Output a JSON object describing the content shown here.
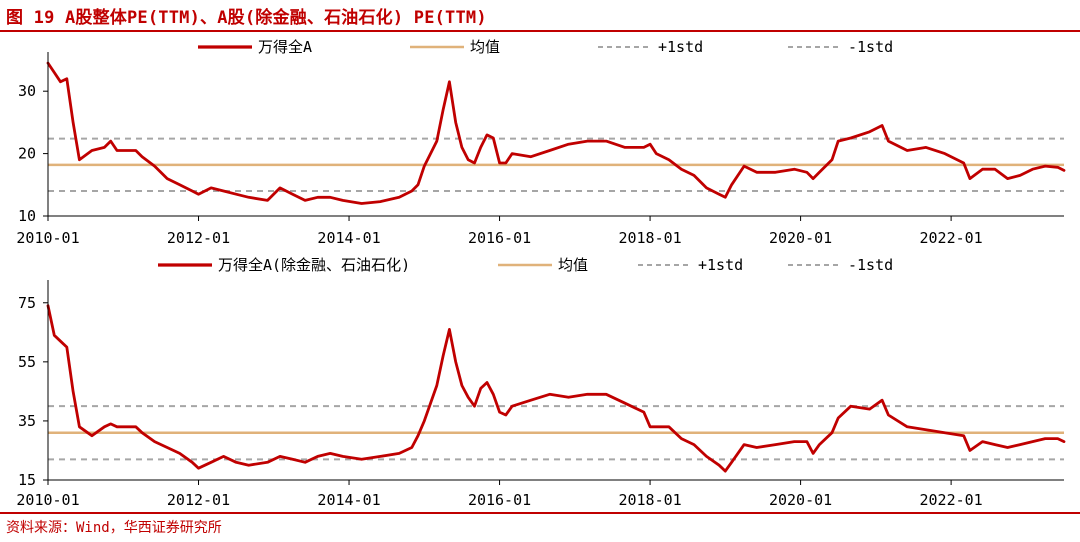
{
  "figure_title": "图 19 A股整体PE(TTM)、A股(除金融、石油石化) PE(TTM)",
  "source": "资料来源：Wind，华西证券研究所",
  "colors": {
    "accent": "#c00000",
    "series": "#c00000",
    "mean": "#e0b27a",
    "std": "#a6a6a6"
  },
  "chart_data": [
    {
      "type": "line",
      "title": "",
      "xlabel": "",
      "ylabel": "",
      "xlim": [
        "2010-01",
        "2023-07"
      ],
      "ylim": [
        10,
        35
      ],
      "yticks": [
        10,
        20,
        30
      ],
      "xticks": [
        "2010-01",
        "2012-01",
        "2014-01",
        "2016-01",
        "2018-01",
        "2020-01",
        "2022-01"
      ],
      "legend": [
        "万得全A",
        "均值",
        "+1std",
        "-1std"
      ],
      "mean": 18.2,
      "plus_1std": 22.4,
      "minus_1std": 14.0,
      "series": [
        {
          "name": "万得全A",
          "x": [
            "2010-01",
            "2010-02",
            "2010-03",
            "2010-04",
            "2010-05",
            "2010-06",
            "2010-08",
            "2010-10",
            "2010-11",
            "2010-12",
            "2011-03",
            "2011-04",
            "2011-06",
            "2011-08",
            "2011-10",
            "2011-12",
            "2012-01",
            "2012-03",
            "2012-05",
            "2012-07",
            "2012-09",
            "2012-12",
            "2013-02",
            "2013-04",
            "2013-06",
            "2013-08",
            "2013-10",
            "2013-12",
            "2014-03",
            "2014-06",
            "2014-09",
            "2014-11",
            "2014-12",
            "2015-01",
            "2015-03",
            "2015-04",
            "2015-05",
            "2015-06",
            "2015-07",
            "2015-08",
            "2015-09",
            "2015-10",
            "2015-11",
            "2015-12",
            "2016-01",
            "2016-02",
            "2016-03",
            "2016-06",
            "2016-09",
            "2016-12",
            "2017-03",
            "2017-06",
            "2017-09",
            "2017-12",
            "2018-01",
            "2018-02",
            "2018-04",
            "2018-06",
            "2018-08",
            "2018-10",
            "2018-12",
            "2019-01",
            "2019-02",
            "2019-04",
            "2019-06",
            "2019-09",
            "2019-12",
            "2020-02",
            "2020-03",
            "2020-04",
            "2020-06",
            "2020-07",
            "2020-09",
            "2020-12",
            "2021-02",
            "2021-03",
            "2021-06",
            "2021-09",
            "2021-12",
            "2022-03",
            "2022-04",
            "2022-06",
            "2022-08",
            "2022-10",
            "2022-12",
            "2023-02",
            "2023-04",
            "2023-06",
            "2023-07"
          ],
          "values": [
            34.5,
            33.0,
            31.5,
            32.0,
            25.0,
            19.0,
            20.5,
            21.0,
            22.0,
            20.5,
            20.5,
            19.5,
            18.0,
            16.0,
            15.0,
            14.0,
            13.5,
            14.5,
            14.0,
            13.5,
            13.0,
            12.5,
            14.5,
            13.5,
            12.5,
            13.0,
            13.0,
            12.5,
            12.0,
            12.3,
            13.0,
            14.0,
            15.0,
            18.0,
            22.0,
            27.0,
            31.5,
            25.0,
            21.0,
            19.0,
            18.5,
            21.0,
            23.0,
            22.5,
            18.5,
            18.5,
            20.0,
            19.5,
            20.5,
            21.5,
            22.0,
            22.0,
            21.0,
            21.0,
            21.5,
            20.0,
            19.0,
            17.5,
            16.5,
            14.5,
            13.5,
            13.0,
            15.0,
            18.0,
            17.0,
            17.0,
            17.5,
            17.0,
            16.0,
            17.0,
            19.0,
            22.0,
            22.5,
            23.5,
            24.5,
            22.0,
            20.5,
            21.0,
            20.0,
            18.5,
            16.0,
            17.5,
            17.5,
            16.0,
            16.5,
            17.5,
            18.0,
            17.8,
            17.3
          ]
        }
      ]
    },
    {
      "type": "line",
      "title": "",
      "xlabel": "",
      "ylabel": "",
      "xlim": [
        "2010-01",
        "2023-07"
      ],
      "ylim": [
        15,
        80
      ],
      "yticks": [
        15,
        35,
        55,
        75
      ],
      "xticks": [
        "2010-01",
        "2012-01",
        "2014-01",
        "2016-01",
        "2018-01",
        "2020-01",
        "2022-01"
      ],
      "legend": [
        "万得全A(除金融、石油石化)",
        "均值",
        "+1std",
        "-1std"
      ],
      "mean": 31.0,
      "plus_1std": 40.0,
      "minus_1std": 22.0,
      "series": [
        {
          "name": "万得全A(除金融、石油石化)",
          "x": [
            "2010-01",
            "2010-02",
            "2010-03",
            "2010-04",
            "2010-05",
            "2010-06",
            "2010-08",
            "2010-10",
            "2010-11",
            "2010-12",
            "2011-03",
            "2011-04",
            "2011-06",
            "2011-08",
            "2011-10",
            "2011-12",
            "2012-01",
            "2012-03",
            "2012-05",
            "2012-07",
            "2012-09",
            "2012-12",
            "2013-02",
            "2013-04",
            "2013-06",
            "2013-08",
            "2013-10",
            "2013-12",
            "2014-03",
            "2014-06",
            "2014-09",
            "2014-11",
            "2014-12",
            "2015-01",
            "2015-03",
            "2015-04",
            "2015-05",
            "2015-06",
            "2015-07",
            "2015-08",
            "2015-09",
            "2015-10",
            "2015-11",
            "2015-12",
            "2016-01",
            "2016-02",
            "2016-03",
            "2016-06",
            "2016-09",
            "2016-12",
            "2017-03",
            "2017-06",
            "2017-09",
            "2017-12",
            "2018-01",
            "2018-02",
            "2018-04",
            "2018-06",
            "2018-08",
            "2018-10",
            "2018-12",
            "2019-01",
            "2019-02",
            "2019-04",
            "2019-06",
            "2019-09",
            "2019-12",
            "2020-02",
            "2020-03",
            "2020-04",
            "2020-06",
            "2020-07",
            "2020-09",
            "2020-12",
            "2021-02",
            "2021-03",
            "2021-06",
            "2021-09",
            "2021-12",
            "2022-03",
            "2022-04",
            "2022-06",
            "2022-08",
            "2022-10",
            "2022-12",
            "2023-02",
            "2023-04",
            "2023-06",
            "2023-07"
          ],
          "values": [
            74,
            64,
            62,
            60,
            45,
            33,
            30,
            33,
            34,
            33,
            33,
            31,
            28,
            26,
            24,
            21,
            19,
            21,
            23,
            21,
            20,
            21,
            23,
            22,
            21,
            23,
            24,
            23,
            22,
            23,
            24,
            26,
            30,
            35,
            47,
            57,
            66,
            55,
            47,
            43,
            40,
            46,
            48,
            44,
            38,
            37,
            40,
            42,
            44,
            43,
            44,
            44,
            41,
            38,
            33,
            33,
            33,
            29,
            27,
            23,
            20,
            18,
            21,
            27,
            26,
            27,
            28,
            28,
            24,
            27,
            31,
            36,
            40,
            39,
            42,
            37,
            33,
            32,
            31,
            30,
            25,
            28,
            27,
            26,
            27,
            28,
            29,
            29,
            28
          ]
        }
      ]
    }
  ]
}
